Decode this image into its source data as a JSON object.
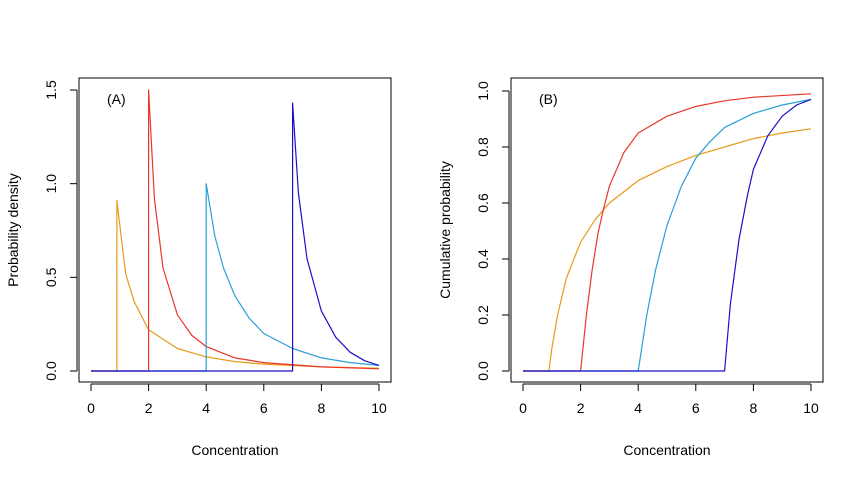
{
  "chart_data": [
    {
      "type": "line",
      "panel_label": "(A)",
      "xlabel": "Concentration",
      "ylabel": "Probability density",
      "xlim": [
        0,
        10
      ],
      "ylim": [
        0,
        1.5
      ],
      "xticks": [
        0,
        2,
        4,
        6,
        8,
        10
      ],
      "yticks": [
        0.0,
        0.5,
        1.0,
        1.5
      ],
      "xtick_labels": [
        "0",
        "2",
        "4",
        "6",
        "8",
        "10"
      ],
      "ytick_labels": [
        "0.0",
        "0.5",
        "1.0",
        "1.5"
      ],
      "grid": false,
      "series": [
        {
          "color": "#e69b1c",
          "x": [
            0,
            0.9,
            0.9,
            1.2,
            1.5,
            2,
            3,
            4,
            5,
            6,
            8,
            10
          ],
          "y": [
            0,
            0,
            0.91,
            0.52,
            0.37,
            0.22,
            0.12,
            0.075,
            0.05,
            0.037,
            0.022,
            0.015
          ]
        },
        {
          "color": "#e8372a",
          "x": [
            0,
            2,
            2,
            2.2,
            2.5,
            3,
            3.5,
            4,
            5,
            6,
            8,
            10
          ],
          "y": [
            0,
            0,
            1.5,
            0.92,
            0.55,
            0.3,
            0.19,
            0.13,
            0.07,
            0.045,
            0.022,
            0.012
          ]
        },
        {
          "color": "#2a9fd6",
          "x": [
            0,
            4,
            4,
            4.3,
            4.6,
            5,
            5.5,
            6,
            7,
            8,
            9,
            10
          ],
          "y": [
            0,
            0,
            1.0,
            0.72,
            0.55,
            0.4,
            0.28,
            0.2,
            0.12,
            0.07,
            0.045,
            0.03
          ]
        },
        {
          "color": "#1a10c8",
          "x": [
            0,
            7,
            7,
            7.2,
            7.5,
            8,
            8.5,
            9,
            9.5,
            10
          ],
          "y": [
            0,
            0,
            1.43,
            0.95,
            0.6,
            0.32,
            0.18,
            0.1,
            0.055,
            0.03
          ]
        }
      ]
    },
    {
      "type": "line",
      "panel_label": "(B)",
      "xlabel": "Concentration",
      "ylabel": "Cumulative probability",
      "xlim": [
        0,
        10
      ],
      "ylim": [
        0,
        1.0
      ],
      "xticks": [
        0,
        2,
        4,
        6,
        8,
        10
      ],
      "yticks": [
        0.0,
        0.2,
        0.4,
        0.6,
        0.8,
        1.0
      ],
      "xtick_labels": [
        "0",
        "2",
        "4",
        "6",
        "8",
        "10"
      ],
      "ytick_labels": [
        "0.0",
        "0.2",
        "0.4",
        "0.6",
        "0.8",
        "1.0"
      ],
      "grid": false,
      "series": [
        {
          "color": "#e69b1c",
          "x": [
            0,
            0.9,
            1.0,
            1.2,
            1.5,
            2,
            2.5,
            3,
            4,
            5,
            6,
            7,
            8,
            9,
            10
          ],
          "y": [
            0,
            0,
            0.08,
            0.2,
            0.33,
            0.46,
            0.54,
            0.6,
            0.68,
            0.73,
            0.77,
            0.8,
            0.83,
            0.85,
            0.865
          ]
        },
        {
          "color": "#e8372a",
          "x": [
            0,
            2,
            2.2,
            2.4,
            2.6,
            2.8,
            3,
            3.5,
            4,
            5,
            6,
            7,
            8,
            10
          ],
          "y": [
            0,
            0,
            0.2,
            0.36,
            0.49,
            0.58,
            0.66,
            0.78,
            0.85,
            0.91,
            0.945,
            0.965,
            0.978,
            0.99
          ]
        },
        {
          "color": "#2a9fd6",
          "x": [
            0,
            4,
            4.3,
            4.6,
            5,
            5.5,
            6,
            6.5,
            7,
            8,
            9,
            10
          ],
          "y": [
            0,
            0,
            0.2,
            0.36,
            0.52,
            0.66,
            0.76,
            0.82,
            0.87,
            0.92,
            0.95,
            0.97
          ]
        },
        {
          "color": "#1a10c8",
          "x": [
            0,
            7,
            7.2,
            7.5,
            7.8,
            8,
            8.5,
            9,
            9.5,
            10
          ],
          "y": [
            0,
            0,
            0.24,
            0.47,
            0.63,
            0.72,
            0.84,
            0.91,
            0.95,
            0.97
          ]
        }
      ]
    }
  ]
}
